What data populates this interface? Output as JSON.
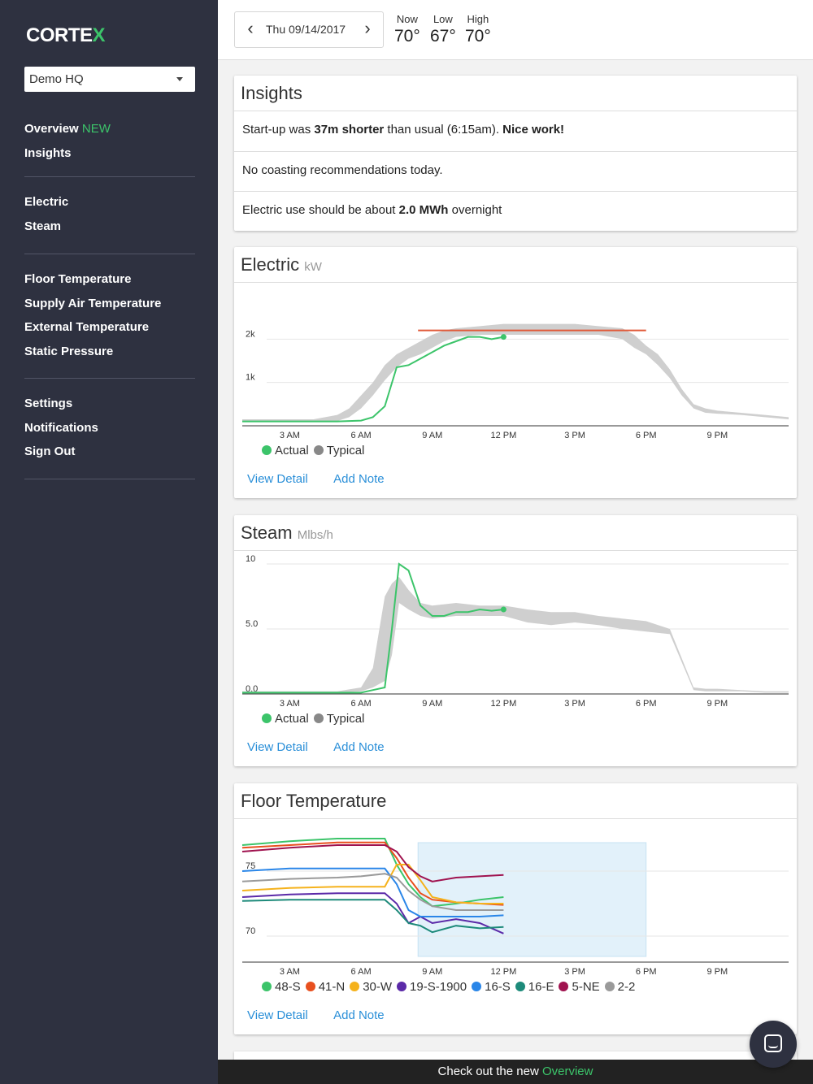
{
  "app": {
    "logo_text": "CORTEX"
  },
  "sidebar": {
    "site_select": "Demo HQ",
    "group1": {
      "overview": "Overview",
      "overview_badge": "NEW",
      "insights": "Insights"
    },
    "group2": {
      "electric": "Electric",
      "steam": "Steam"
    },
    "group3": {
      "floor_temp": "Floor Temperature",
      "supply_air": "Supply Air Temperature",
      "external_temp": "External Temperature",
      "static_pressure": "Static Pressure"
    },
    "group4": {
      "settings": "Settings",
      "notifications": "Notifications",
      "sign_out": "Sign Out"
    }
  },
  "header": {
    "date": "Thu 09/14/2017",
    "prev_icon": "chevron-left-icon",
    "next_icon": "chevron-right-icon",
    "weather": {
      "now_label": "Now",
      "now_value": "70°",
      "low_label": "Low",
      "low_value": "67°",
      "high_label": "High",
      "high_value": "70°"
    }
  },
  "insights": {
    "title": "Insights",
    "row1": {
      "a": "Start-up was ",
      "b": "37m shorter",
      "c": " than usual (6:15am). ",
      "d": "Nice work!"
    },
    "row2": "No coasting recommendations today.",
    "row3": {
      "a": "Electric use should be about ",
      "b": "2.0 MWh",
      "c": " overnight"
    }
  },
  "actions": {
    "view_detail": "View Detail",
    "add_note": "Add Note"
  },
  "banner": {
    "text": "Check out the new ",
    "link": "Overview"
  },
  "colors": {
    "green": "#3cc46a",
    "typical": "#cfcfcf",
    "target": "#e05a3a",
    "link": "#2a8fd8",
    "sidebar": "#2e3140"
  },
  "chart_data": [
    {
      "type": "line",
      "title": "Electric",
      "unit": "kW",
      "x_ticks": [
        "3 AM",
        "6 AM",
        "9 AM",
        "12 PM",
        "3 PM",
        "6 PM",
        "9 PM"
      ],
      "y_ticks": [
        "1k",
        "2k"
      ],
      "ylim": [
        0,
        3000
      ],
      "xlim": [
        1,
        24
      ],
      "target": {
        "x_start": 8.4,
        "x_end": 18.0,
        "value": 2200
      },
      "series": [
        {
          "name": "Actual",
          "color": "#3cc46a",
          "x": [
            1,
            2,
            3,
            4,
            5,
            6,
            6.5,
            7,
            7.5,
            8,
            8.5,
            9,
            9.5,
            10,
            10.5,
            11,
            11.5,
            12
          ],
          "y": [
            100,
            100,
            100,
            100,
            100,
            120,
            200,
            450,
            1350,
            1400,
            1550,
            1700,
            1850,
            1950,
            2050,
            2050,
            2000,
            2050
          ]
        },
        {
          "name": "Typical",
          "color": "#cfcfcf",
          "x": [
            1,
            2,
            3,
            4,
            5,
            5.5,
            6,
            6.5,
            7,
            7.5,
            8,
            8.5,
            9,
            9.5,
            10,
            11,
            12,
            13,
            14,
            15,
            16,
            17,
            17.5,
            18,
            18.5,
            19,
            19.5,
            20,
            20.5,
            21,
            22,
            23,
            24
          ],
          "low": [
            100,
            100,
            100,
            100,
            110,
            200,
            400,
            700,
            1050,
            1350,
            1550,
            1650,
            1800,
            1950,
            2050,
            2100,
            2100,
            2100,
            2100,
            2100,
            2100,
            2000,
            1800,
            1650,
            1400,
            1100,
            700,
            400,
            300,
            280,
            250,
            200,
            150
          ],
          "high": [
            150,
            150,
            150,
            150,
            250,
            400,
            700,
            1000,
            1400,
            1650,
            1800,
            1950,
            2100,
            2200,
            2250,
            2300,
            2350,
            2350,
            2350,
            2350,
            2300,
            2250,
            2100,
            1850,
            1650,
            1300,
            850,
            500,
            400,
            350,
            300,
            250,
            200
          ]
        }
      ]
    },
    {
      "type": "line",
      "title": "Steam",
      "unit": "Mlbs/h",
      "x_ticks": [
        "3 AM",
        "6 AM",
        "9 AM",
        "12 PM",
        "3 PM",
        "6 PM",
        "9 PM"
      ],
      "y_ticks": [
        "0.0",
        "5.0",
        "10"
      ],
      "ylim": [
        0,
        10
      ],
      "xlim": [
        1,
        24
      ],
      "series": [
        {
          "name": "Actual",
          "color": "#3cc46a",
          "x": [
            1,
            2,
            3,
            4,
            5,
            6,
            6.5,
            7,
            7.3,
            7.6,
            8,
            8.5,
            9,
            9.5,
            10,
            10.5,
            11,
            11.5,
            12
          ],
          "y": [
            0.1,
            0.1,
            0.1,
            0.1,
            0.1,
            0.1,
            0.3,
            0.5,
            5.0,
            10.0,
            9.5,
            6.8,
            6.0,
            6.0,
            6.3,
            6.3,
            6.5,
            6.4,
            6.5
          ]
        },
        {
          "name": "Typical",
          "color": "#cfcfcf",
          "x": [
            1,
            2,
            3,
            4,
            5,
            6,
            6.5,
            7,
            7.3,
            7.6,
            8,
            8.5,
            9,
            10,
            11,
            12,
            13,
            14,
            15,
            16,
            17,
            18,
            19,
            20,
            20.5,
            21,
            22,
            23,
            24
          ],
          "low": [
            0.1,
            0.1,
            0.1,
            0.1,
            0.1,
            0.2,
            0.5,
            1.0,
            3.0,
            7.0,
            6.5,
            6.0,
            5.8,
            6.0,
            6.0,
            6.0,
            5.5,
            5.3,
            5.5,
            5.3,
            5.0,
            4.8,
            4.6,
            0.3,
            0.2,
            0.2,
            0.2,
            0.1,
            0.1
          ],
          "high": [
            0.2,
            0.2,
            0.2,
            0.2,
            0.2,
            0.5,
            2.0,
            7.5,
            8.5,
            9.0,
            8.0,
            7.0,
            6.8,
            7.0,
            6.8,
            6.8,
            6.5,
            6.3,
            6.3,
            6.0,
            5.8,
            5.6,
            5.0,
            0.5,
            0.4,
            0.4,
            0.3,
            0.2,
            0.2
          ]
        }
      ]
    },
    {
      "type": "line",
      "title": "Floor Temperature",
      "x_ticks": [
        "3 AM",
        "6 AM",
        "9 AM",
        "12 PM",
        "3 PM",
        "6 PM",
        "9 PM"
      ],
      "y_ticks": [
        "70",
        "75"
      ],
      "ylim": [
        68,
        78
      ],
      "xlim": [
        1,
        24
      ],
      "highlight": {
        "x_start": 8.4,
        "x_end": 18.0
      },
      "series": [
        {
          "name": "48-S",
          "color": "#3cc46a",
          "x": [
            1,
            3,
            5,
            7,
            7.5,
            8,
            8.5,
            9,
            10,
            11,
            12
          ],
          "y": [
            77.0,
            77.3,
            77.5,
            77.5,
            75.5,
            74.0,
            73.0,
            72.3,
            72.5,
            72.8,
            73.0
          ]
        },
        {
          "name": "41-N",
          "color": "#e8501f",
          "x": [
            1,
            3,
            5,
            7,
            7.5,
            8,
            8.5,
            9,
            10,
            11,
            12
          ],
          "y": [
            76.8,
            77.0,
            77.2,
            77.2,
            76.0,
            74.5,
            73.3,
            72.8,
            72.6,
            72.5,
            72.4
          ]
        },
        {
          "name": "30-W",
          "color": "#f5b21c",
          "x": [
            1,
            3,
            5,
            6,
            7,
            7.5,
            8,
            8.5,
            9,
            10,
            11,
            12
          ],
          "y": [
            73.5,
            73.7,
            73.8,
            73.8,
            73.8,
            75.5,
            75.5,
            74.3,
            73.0,
            72.6,
            72.5,
            72.5
          ]
        },
        {
          "name": "19-S-1900",
          "color": "#5b2aa8",
          "x": [
            1,
            3,
            5,
            7,
            7.5,
            8,
            8.5,
            9,
            10,
            11,
            12
          ],
          "y": [
            73.0,
            73.2,
            73.3,
            73.3,
            72.5,
            71.0,
            71.5,
            71.0,
            71.3,
            71.0,
            70.2
          ]
        },
        {
          "name": "16-S",
          "color": "#2a86e8",
          "x": [
            1,
            3,
            5,
            7,
            7.5,
            8,
            8.5,
            9,
            10,
            11,
            12
          ],
          "y": [
            75.0,
            75.2,
            75.2,
            75.2,
            74.0,
            72.0,
            71.5,
            71.5,
            71.5,
            71.5,
            71.6
          ]
        },
        {
          "name": "16-E",
          "color": "#1d8a7a",
          "x": [
            1,
            3,
            5,
            7,
            7.5,
            8,
            8.5,
            9,
            10,
            11,
            12
          ],
          "y": [
            72.7,
            72.8,
            72.8,
            72.8,
            72.0,
            71.0,
            70.8,
            70.3,
            70.8,
            70.6,
            70.7
          ]
        },
        {
          "name": "5-NE",
          "color": "#a0134f",
          "x": [
            1,
            3,
            5,
            7,
            7.5,
            8,
            8.5,
            9,
            10,
            11,
            12
          ],
          "y": [
            76.5,
            76.8,
            77.0,
            77.0,
            76.5,
            75.3,
            74.6,
            74.2,
            74.5,
            74.6,
            74.7
          ]
        },
        {
          "name": "2-2",
          "color": "#9a9a9a",
          "x": [
            1,
            3,
            5,
            6,
            7,
            7.5,
            8,
            8.5,
            9,
            10,
            11,
            12
          ],
          "y": [
            74.2,
            74.4,
            74.5,
            74.6,
            74.8,
            74.5,
            73.5,
            72.8,
            72.3,
            72.0,
            72.0,
            72.0
          ]
        }
      ]
    }
  ]
}
